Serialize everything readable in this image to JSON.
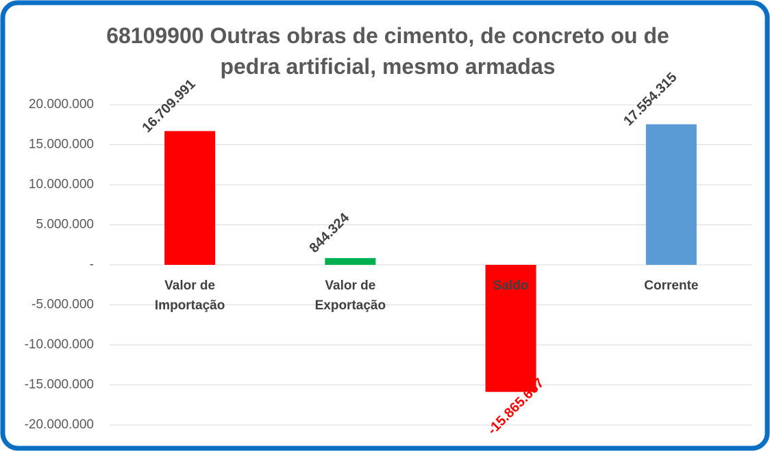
{
  "chart_data": {
    "type": "bar",
    "title": "68109900  Outras obras de cimento, de concreto ou de pedra artificial, mesmo armadas",
    "categories": [
      "Valor de Importação",
      "Valor de Exportação",
      "Saldo",
      "Corrente"
    ],
    "values": [
      16709991,
      844324,
      -15865667,
      17554315
    ],
    "value_labels": [
      "16.709.991",
      "844.324",
      "-15.865.667",
      "17.554.315"
    ],
    "colors": [
      "#ff0000",
      "#00b050",
      "#ff0000",
      "#5b9bd5"
    ],
    "value_label_colors": [
      "#404040",
      "#404040",
      "#ff0000",
      "#404040"
    ],
    "ylim": [
      -20000000,
      20000000
    ],
    "yticks": [
      {
        "value": -20000000,
        "label": "-20.000.000"
      },
      {
        "value": -15000000,
        "label": "-15.000.000"
      },
      {
        "value": -10000000,
        "label": "-10.000.000"
      },
      {
        "value": -5000000,
        "label": "-5.000.000"
      },
      {
        "value": 0,
        "label": "-"
      },
      {
        "value": 5000000,
        "label": "5.000.000"
      },
      {
        "value": 10000000,
        "label": "10.000.000"
      },
      {
        "value": 15000000,
        "label": "15.000.000"
      },
      {
        "value": 20000000,
        "label": "20.000.000"
      }
    ],
    "grid": true
  }
}
